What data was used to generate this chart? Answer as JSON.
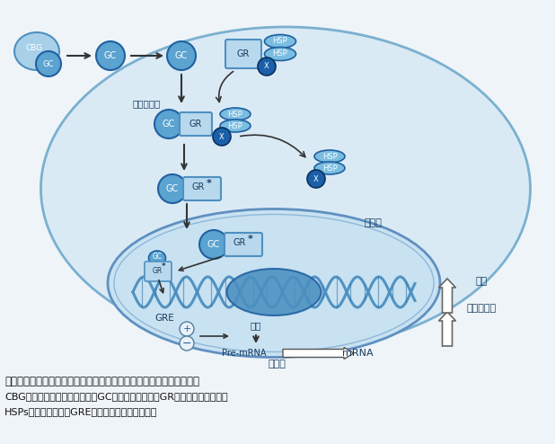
{
  "bg_color": "#eef4f8",
  "gc_color": "#5ba3d0",
  "gr_box_color": "#b8d8ee",
  "hsp_color": "#7abde0",
  "x_color": "#1a5fa8",
  "title_bold": "糖皮质激素类药物作用于细胞内糖皮质激素受体产生基因效应的示意图",
  "caption_line1": "CBG：皮质类固醇结合球蛋白；GC：糖皮质激素类；GR：糖皮质激素受体；",
  "caption_line2": "HSPs：热休克蛋白；GRE：糖皮质激素受体元件。",
  "unstable_text": "（不稳定）",
  "nucleus_text": "细胞核",
  "cytoplasm_text": "细胞浆",
  "effect_text": "效应",
  "active_protein_text": "活性蛋白质",
  "mrna_text": "mRNA",
  "premrna_text": "Pre-mRNA",
  "transcription_text": "转录",
  "gre_text": "GRE"
}
